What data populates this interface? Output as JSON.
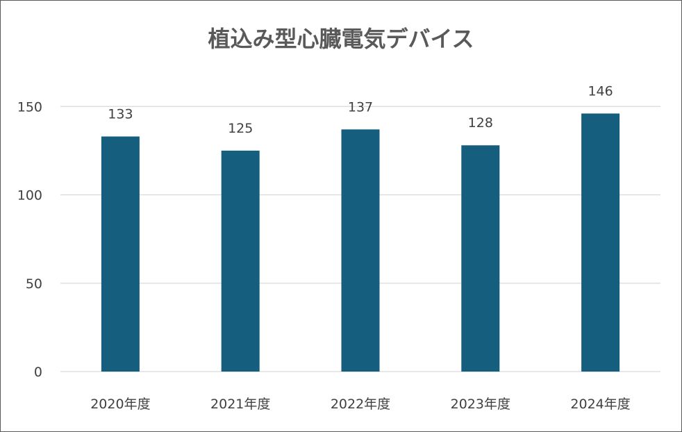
{
  "chart_data": {
    "type": "bar",
    "title": "植込み型心臓電気デバイス",
    "categories": [
      "2020年度",
      "2021年度",
      "2022年度",
      "2023年度",
      "2024年度"
    ],
    "values": [
      133,
      125,
      137,
      128,
      146
    ],
    "yticks": [
      0,
      50,
      100,
      150
    ],
    "ylim": [
      0,
      150
    ],
    "grid": true,
    "data_labels": true,
    "bar_color": "#155e7d"
  }
}
